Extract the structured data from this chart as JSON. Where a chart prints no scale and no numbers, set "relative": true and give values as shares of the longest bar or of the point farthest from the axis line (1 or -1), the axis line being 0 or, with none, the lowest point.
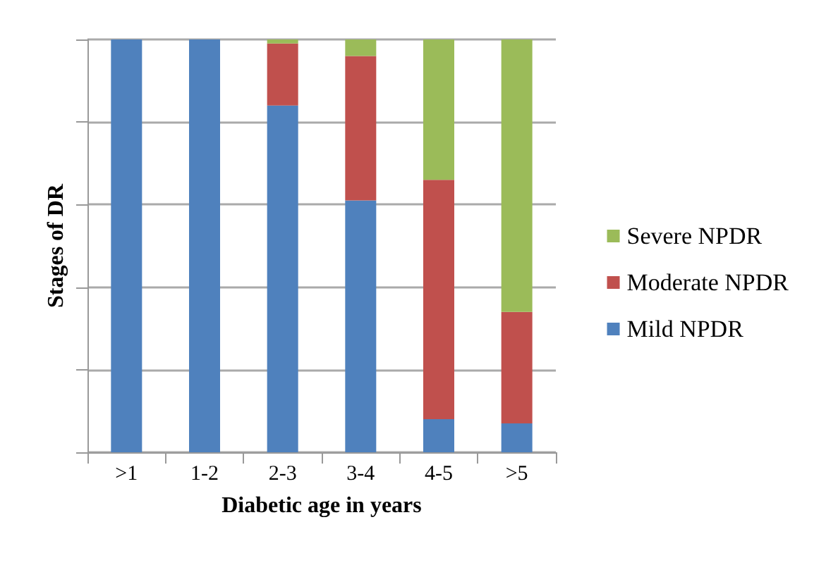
{
  "chart_data": {
    "type": "bar",
    "stacked": true,
    "relative": true,
    "xlabel": "Diabetic age in years",
    "ylabel": "Stages of DR",
    "categories": [
      ">1",
      "1-2",
      "2-3",
      "3-4",
      "4-5",
      ">5"
    ],
    "series": [
      {
        "name": "Mild NPDR",
        "color": "#4f81bd",
        "values": [
          1,
          1,
          0.84,
          0.61,
          0.08,
          0.07
        ]
      },
      {
        "name": "Moderate NPDR",
        "color": "#c0504d",
        "values": [
          0,
          0,
          0.15,
          0.35,
          0.58,
          0.27
        ]
      },
      {
        "name": "Severe NPDR",
        "color": "#9bbb59",
        "values": [
          0,
          0,
          0.01,
          0.04,
          0.34,
          0.66
        ]
      }
    ],
    "grid": true,
    "legend": "right"
  }
}
